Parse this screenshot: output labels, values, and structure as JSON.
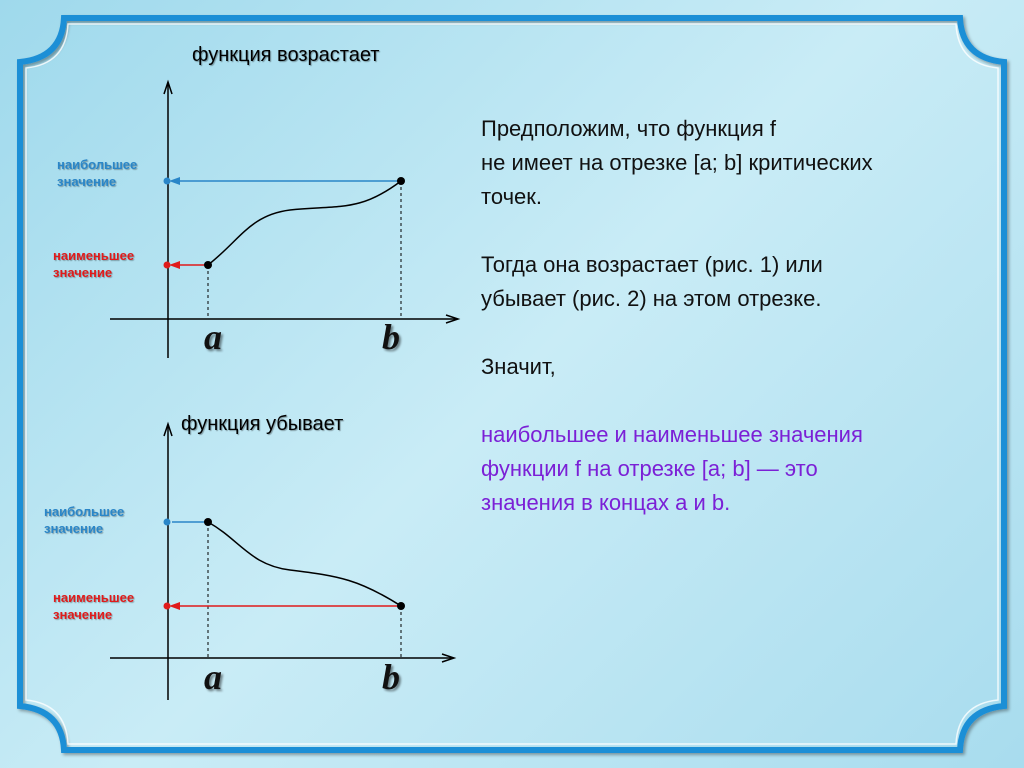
{
  "colors": {
    "frame": "#1f8fd6",
    "max_marker": "#2a86c8",
    "min_marker": "#e01b1b",
    "conclusion_text": "#7b20d6"
  },
  "figure_increasing": {
    "title": "функция возрастает",
    "max_label_line1": "наибольшее",
    "max_label_line2": "значение",
    "min_label_line1": "наименьшее",
    "min_label_line2": "значение",
    "tick_a": "a",
    "tick_b": "b"
  },
  "figure_decreasing": {
    "title": "функция убывает",
    "max_label_line1": "наибольшее",
    "max_label_line2": "значение",
    "min_label_line1": "наименьшее",
    "min_label_line2": "значение",
    "tick_a": "a",
    "tick_b": "b"
  },
  "text": {
    "para1_line1": "Предположим, что функция f",
    "para1_line2": "не имеет на отрезке [a; b] критических",
    "para1_line3": "точек.",
    "para2_line1": "Тогда она возрастает (рис. 1) или",
    "para2_line2": "убывает (рис. 2) на этом отрезке.",
    "para3": "Значит,",
    "conclusion_line1": "наибольшее и наименьшее значения",
    "conclusion_line2": "функции f на отрезке [a; b] — это",
    "conclusion_line3": "значения в концах a и b."
  }
}
